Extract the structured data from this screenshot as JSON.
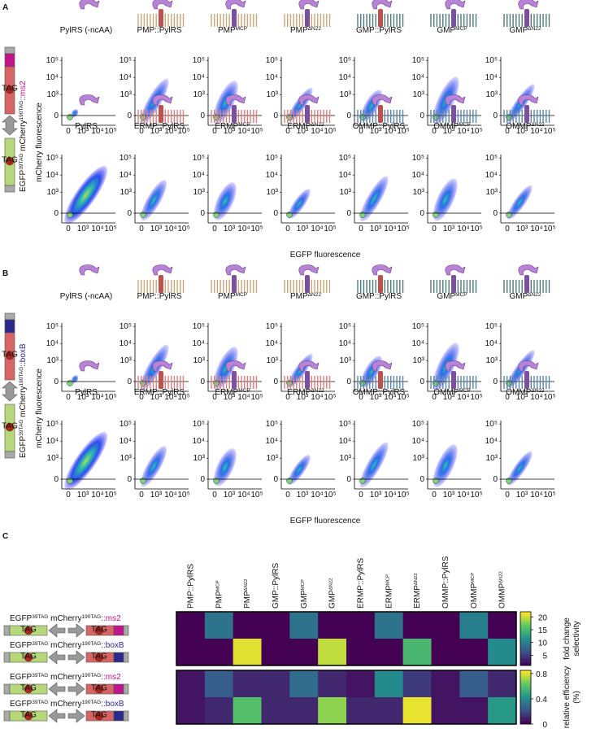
{
  "panels": [
    {
      "letter": "A",
      "y_title": "mCherry fluorescence",
      "x_title": "EGFP fluorescence",
      "construct": [
        {
          "t": "EGFP"
        },
        {
          "t": "39TAG",
          "sup": true
        },
        {
          "t": " mCherry"
        },
        {
          "t": "190TAG",
          "sup": true
        },
        {
          "t": "::ms2",
          "color": "#c0168b"
        }
      ],
      "rows": [
        [
          {
            "main": "PylRS (-ncAA)"
          },
          {
            "main": "PMP::PylRS"
          },
          {
            "main": "PMP",
            "sup": "MCP"
          },
          {
            "main": "PMP",
            "sup": "ΔN22"
          },
          {
            "main": "GMP::PylRS"
          },
          {
            "main": "GMP",
            "sup": "MCP"
          },
          {
            "main": "GMP",
            "sup": "ΔN22"
          }
        ],
        [
          {
            "main": "PylRS"
          },
          {
            "main": "ERMP::PylRS"
          },
          {
            "main": "ERMP",
            "sup": "MCP"
          },
          {
            "main": "ERMP",
            "sup": "ΔN22"
          },
          {
            "main": "OMMP::PylRS"
          },
          {
            "main": "OMMP",
            "sup": "MCP"
          },
          {
            "main": "OMMP",
            "sup": "ΔN22"
          }
        ]
      ]
    },
    {
      "letter": "B",
      "y_title": "mCherry fluorescence",
      "x_title": "EGFP fluorescence",
      "construct": [
        {
          "t": "EGFP"
        },
        {
          "t": "39TAG",
          "sup": true
        },
        {
          "t": " mCherry"
        },
        {
          "t": "190TAG",
          "sup": true
        },
        {
          "t": "::boxB",
          "color": "#2a2a8c"
        }
      ],
      "rows": [
        [
          {
            "main": "PylRS (-ncAA)"
          },
          {
            "main": "PMP::PylRS"
          },
          {
            "main": "PMP",
            "sup": "MCP"
          },
          {
            "main": "PMP",
            "sup": "ΔN22"
          },
          {
            "main": "GMP::PylRS"
          },
          {
            "main": "GMP",
            "sup": "MCP"
          },
          {
            "main": "GMP",
            "sup": "ΔN22"
          }
        ],
        [
          {
            "main": "PylRS"
          },
          {
            "main": "ERMP::PylRS"
          },
          {
            "main": "ERMP",
            "sup": "MCP"
          },
          {
            "main": "ERMP",
            "sup": "ΔN22"
          },
          {
            "main": "OMMP::PylRS"
          },
          {
            "main": "OMMP",
            "sup": "MCP"
          },
          {
            "main": "OMMP",
            "sup": "ΔN22"
          }
        ]
      ]
    }
  ],
  "axis_ticks": [
    "0",
    "10³",
    "10⁴",
    "10⁵"
  ],
  "tag": "TAG",
  "heatmap": {
    "letter": "C",
    "columns": [
      {
        "main": "PMP::PylRS"
      },
      {
        "main": "PMP",
        "sup": "MCP"
      },
      {
        "main": "PMP",
        "sup": "ΔN22"
      },
      {
        "main": "GMP::PylRS"
      },
      {
        "main": "GMP",
        "sup": "MCP"
      },
      {
        "main": "GMP",
        "sup": "ΔN22"
      },
      {
        "main": "ERMP::PylRS"
      },
      {
        "main": "ERMP",
        "sup": "MCP"
      },
      {
        "main": "ERMP",
        "sup": "ΔN22"
      },
      {
        "main": "OMMP::PylRS"
      },
      {
        "main": "OMMP",
        "sup": "MCP"
      },
      {
        "main": "OMMP",
        "sup": "ΔN22"
      }
    ],
    "constructs": [
      [
        {
          "t": "EGFP"
        },
        {
          "t": "39TAG",
          "sup": true
        },
        {
          "t": " mCherry"
        },
        {
          "t": "190TAG",
          "sup": true
        },
        {
          "t": "::ms2",
          "color": "#c0168b"
        }
      ],
      [
        {
          "t": "EGFP"
        },
        {
          "t": "39TAG",
          "sup": true
        },
        {
          "t": " mCherry"
        },
        {
          "t": "190TAG",
          "sup": true
        },
        {
          "t": "::boxB",
          "color": "#2a2a8c"
        }
      ],
      [
        {
          "t": "EGFP"
        },
        {
          "t": "39TAG",
          "sup": true
        },
        {
          "t": " mCherry"
        },
        {
          "t": "190TAG",
          "sup": true
        },
        {
          "t": "::ms2",
          "color": "#c0168b"
        }
      ],
      [
        {
          "t": "EGFP"
        },
        {
          "t": "39TAG",
          "sup": true
        },
        {
          "t": " mCherry"
        },
        {
          "t": "190TAG",
          "sup": true
        },
        {
          "t": "::boxB",
          "color": "#2a2a8c"
        }
      ]
    ],
    "panels": [
      {
        "title": [
          "fold change",
          "selectivity"
        ],
        "zlim": [
          1,
          22
        ],
        "zticks": [
          5,
          10,
          15,
          20
        ],
        "values": [
          [
            1,
            9,
            1,
            1,
            9,
            1,
            1,
            9,
            1,
            1,
            10,
            1
          ],
          [
            1,
            1,
            21,
            1,
            1,
            20,
            1,
            1,
            15,
            1,
            1,
            11
          ]
        ]
      },
      {
        "title": [
          "relative efficiency",
          "(%)"
        ],
        "zlim": [
          0,
          0.85
        ],
        "zticks": [
          0,
          0.4,
          0.8
        ],
        "values": [
          [
            0.05,
            0.25,
            0.1,
            0.1,
            0.3,
            0.1,
            0.05,
            0.4,
            0.15,
            0.05,
            0.25,
            0.1
          ],
          [
            0.05,
            0.1,
            0.6,
            0.1,
            0.1,
            0.7,
            0.1,
            0.1,
            0.82,
            0.05,
            0.05,
            0.45
          ]
        ]
      }
    ]
  }
}
